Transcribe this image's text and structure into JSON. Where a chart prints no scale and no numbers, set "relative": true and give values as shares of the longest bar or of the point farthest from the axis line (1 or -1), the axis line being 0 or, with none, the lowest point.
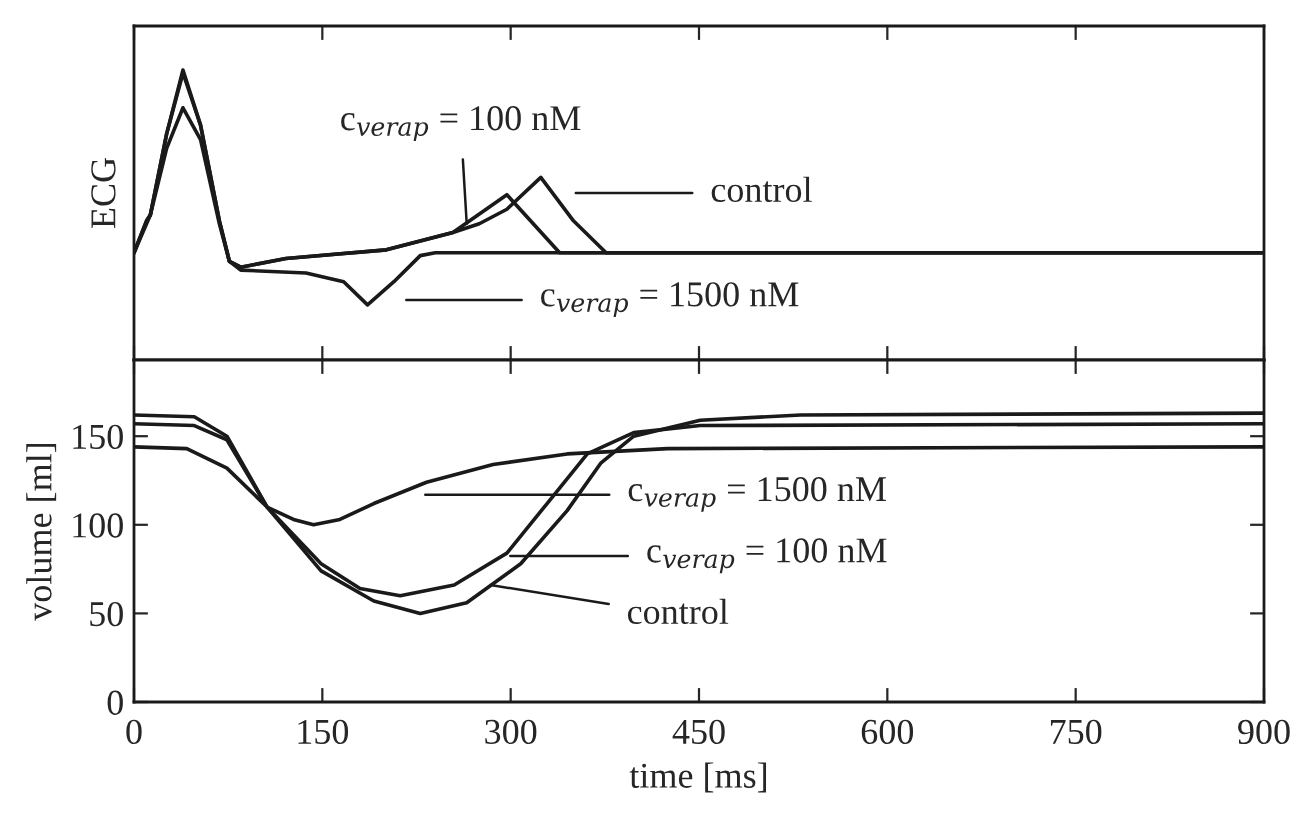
{
  "chart_data": [
    {
      "type": "line",
      "ylabel": "ECG",
      "relative": true,
      "xlim": [
        0,
        900
      ],
      "xticks": [
        0,
        150,
        300,
        450,
        600,
        750,
        900
      ],
      "tick_labels": false,
      "grid": false,
      "legend": false,
      "series": [
        {
          "color": "#1a1a1a",
          "x": [
            0,
            10,
            13,
            26,
            39,
            53,
            68,
            76,
            85,
            121,
            201,
            254,
            275,
            297,
            324,
            350,
            376,
            900
          ],
          "values": [
            0.37,
            0.48,
            0.5,
            0.78,
            1.0,
            0.81,
            0.48,
            0.34,
            0.32,
            0.35,
            0.38,
            0.44,
            0.47,
            0.52,
            0.63,
            0.48,
            0.37,
            0.37
          ]
        },
        {
          "color": "#1a1a1a",
          "x": [
            0,
            10,
            13,
            26,
            39,
            53,
            68,
            76,
            85,
            121,
            201,
            254,
            297,
            339,
            900
          ],
          "values": [
            0.37,
            0.48,
            0.5,
            0.78,
            0.99,
            0.81,
            0.48,
            0.34,
            0.32,
            0.35,
            0.38,
            0.44,
            0.57,
            0.37,
            0.37
          ]
        },
        {
          "color": "#1a1a1a",
          "x": [
            0,
            10,
            13,
            26,
            39,
            53,
            68,
            76,
            85,
            137,
            167,
            186,
            207,
            228,
            240,
            900
          ],
          "values": [
            0.37,
            0.47,
            0.5,
            0.73,
            0.87,
            0.76,
            0.47,
            0.34,
            0.31,
            0.3,
            0.27,
            0.19,
            0.27,
            0.36,
            0.37,
            0.37
          ]
        }
      ],
      "annotations": [
        {
          "text": "c$_{verap}$ = 100 nM",
          "x": 265,
          "y": 0.47
        },
        "control",
        "c$_{verap}$ = 1500 nM"
      ]
    },
    {
      "type": "line",
      "xlabel": "time [ms]",
      "ylabel": "volume [ml]",
      "xlim": [
        0,
        900
      ],
      "xticks": [
        0,
        150,
        300,
        450,
        600,
        750,
        900
      ],
      "ylim": [
        0,
        193
      ],
      "yticks": [
        0,
        50,
        100,
        150
      ],
      "grid": false,
      "legend": false,
      "series": [
        {
          "color": "#1a1a1a",
          "x": [
            0,
            48,
            74,
            106,
            149,
            191,
            228,
            265,
            308,
            345,
            372,
            398,
            451,
            531,
            900
          ],
          "values": [
            162,
            161,
            150,
            110,
            74,
            57,
            50,
            56,
            78,
            108,
            135,
            150,
            159,
            162,
            163
          ]
        },
        {
          "color": "#1a1a1a",
          "x": [
            0,
            48,
            74,
            106,
            149,
            180,
            212,
            255,
            297,
            329,
            361,
            398,
            451,
            900
          ],
          "values": [
            157,
            156,
            148,
            110,
            78,
            64,
            60,
            66,
            84,
            112,
            140,
            152,
            156,
            157
          ]
        },
        {
          "color": "#1a1a1a",
          "x": [
            0,
            42,
            74,
            106,
            127,
            143,
            164,
            191,
            233,
            286,
            345,
            425,
            900
          ],
          "values": [
            144,
            143,
            132,
            110,
            103,
            100,
            103,
            112,
            124,
            134,
            140,
            143,
            144
          ]
        }
      ],
      "annotations": [
        {
          "text": "c$_{verap}$ = 1500 nM",
          "x": 232,
          "y": 117
        },
        "c$_{verap}$ = 100 nM",
        {
          "text": "control",
          "x": 284,
          "y": 66
        }
      ]
    }
  ]
}
